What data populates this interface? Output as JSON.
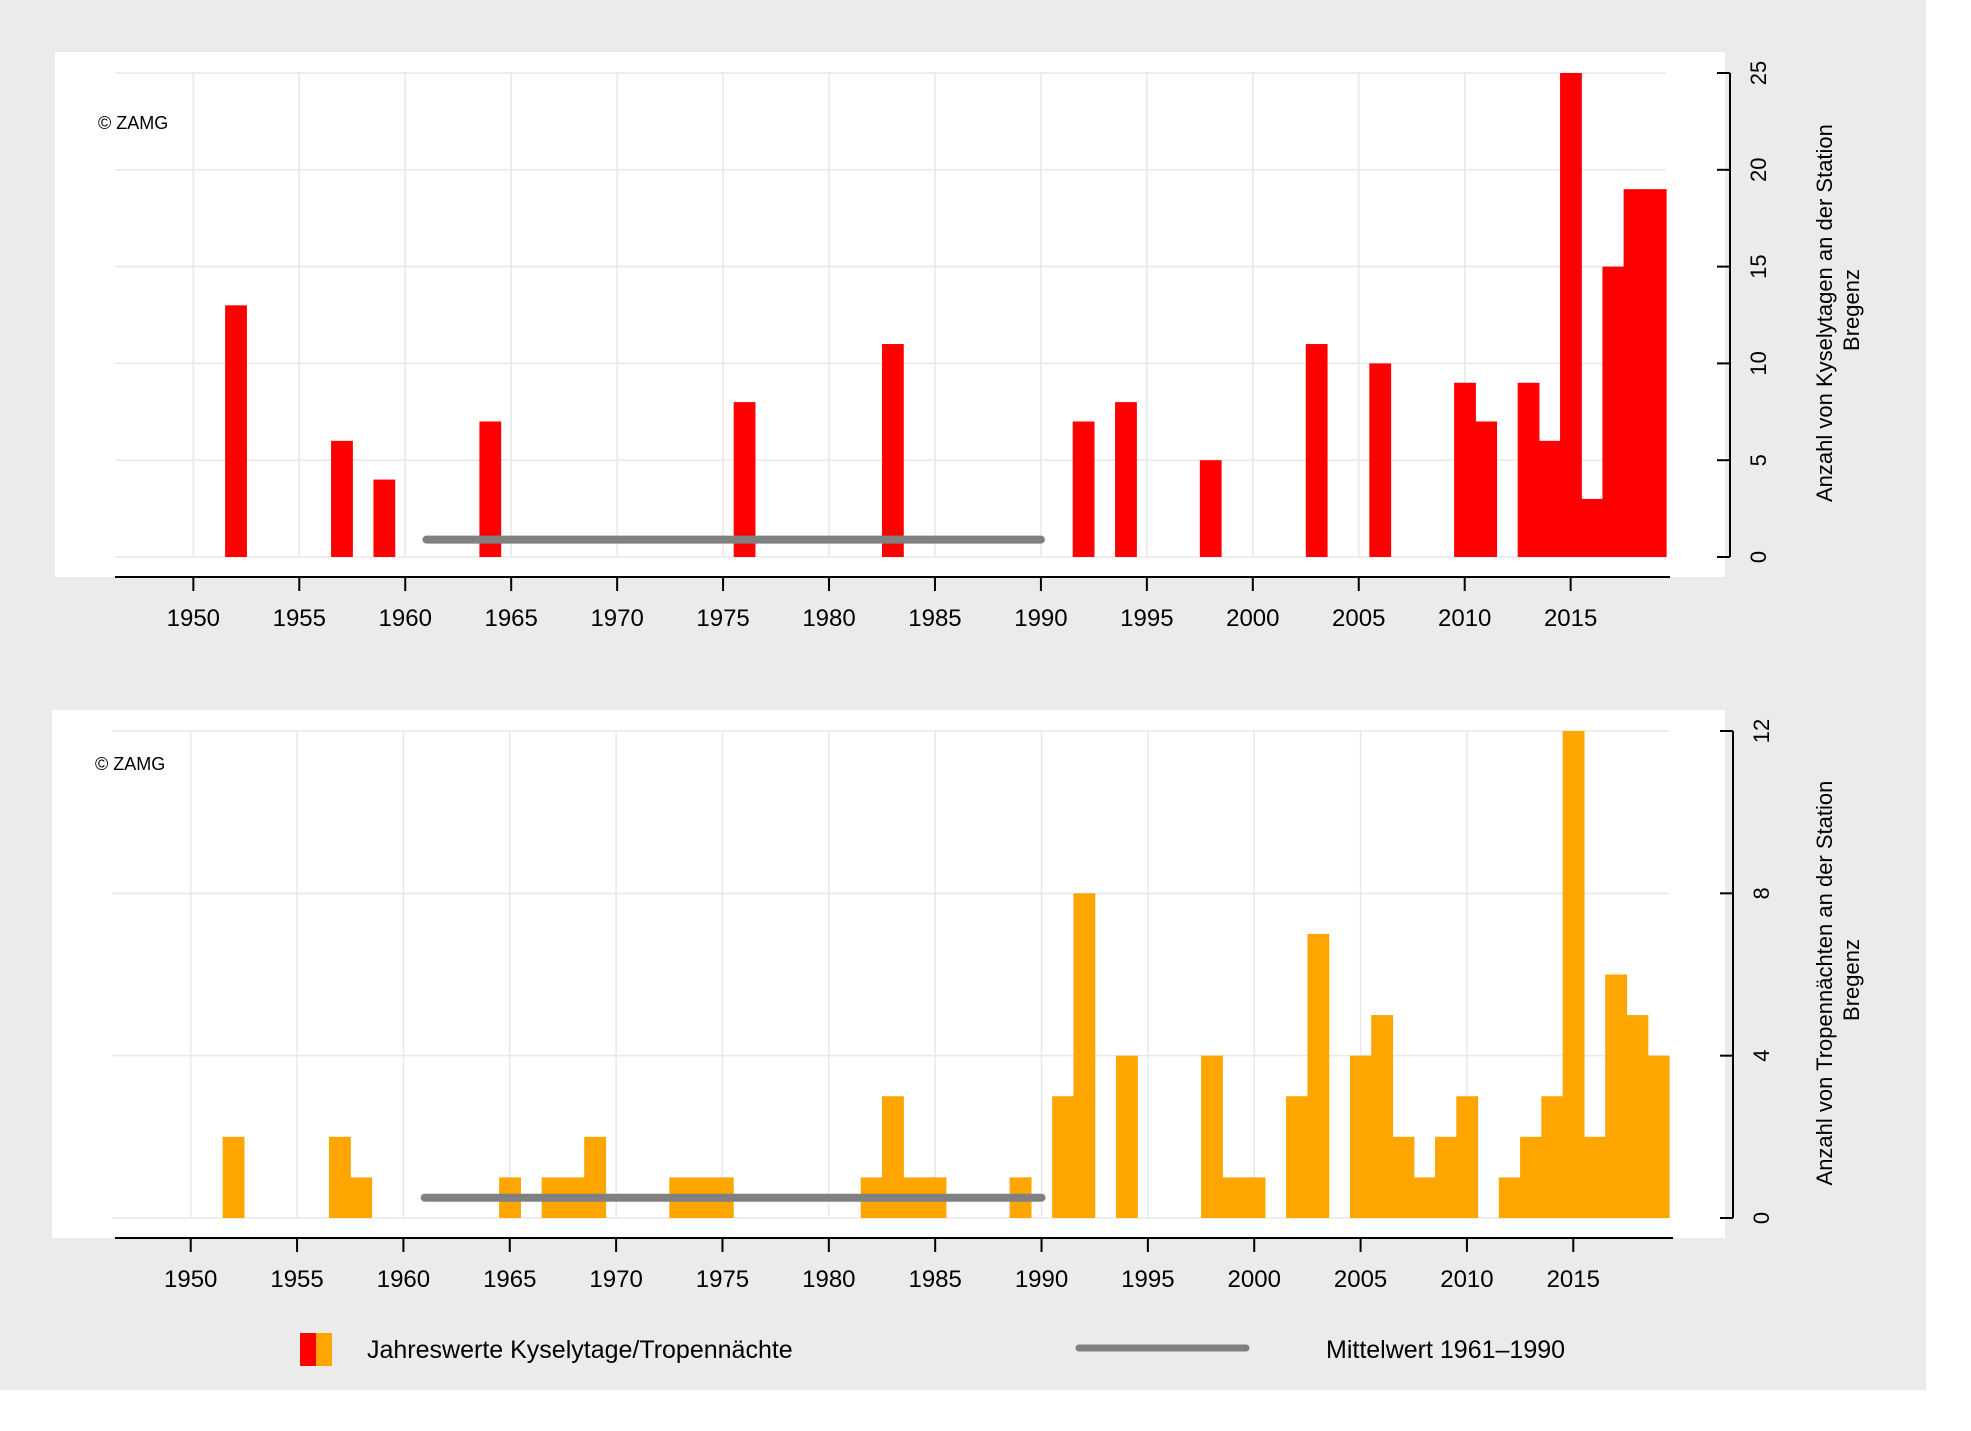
{
  "copyright": "© ZAMG",
  "legend": {
    "bars_label": "Jahreswerte Kyselytage/Tropennächte",
    "mean_label": "Mittelwert 1961–1990"
  },
  "colors": {
    "kyselytage": "#ff0000",
    "tropennaechte": "#ffa500",
    "mean": "#808080",
    "frame_bg": "#ebebeb",
    "grid": "#e8e8e8"
  },
  "chart_data": [
    {
      "type": "bar",
      "ylabel": "Anzahl von Kyselytagen an der Station Bregenz",
      "ylabel_lines": [
        "Anzahl von Kyselytagen an der Station",
        "Bregenz"
      ],
      "xlim": [
        1945.5,
        2019.5
      ],
      "ylim": [
        0,
        25
      ],
      "yticks": [
        0,
        5,
        10,
        15,
        20,
        25
      ],
      "xticks": [
        1950,
        1955,
        1960,
        1965,
        1970,
        1975,
        1980,
        1985,
        1990,
        1995,
        2000,
        2005,
        2010,
        2015
      ],
      "grid": true,
      "yaxis_position": "right",
      "color": "#ff0000",
      "x": [
        1952,
        1957,
        1959,
        1964,
        1976,
        1983,
        1992,
        1994,
        1998,
        2003,
        2006,
        2010,
        2011,
        2013,
        2014,
        2015,
        2016,
        2017,
        2018,
        2019
      ],
      "values": [
        13,
        6,
        4,
        7,
        8,
        11,
        7,
        8,
        5,
        11,
        10,
        9,
        7,
        9,
        6,
        25,
        3,
        15,
        19,
        19
      ],
      "mean": {
        "x_start": 1961,
        "x_end": 1990,
        "value": 0.9
      }
    },
    {
      "type": "bar",
      "ylabel": "Anzahl von Tropennächten an der Station Bregenz",
      "ylabel_lines": [
        "Anzahl von Tropennächten an der Station",
        "Bregenz"
      ],
      "xlim": [
        1945.5,
        2019.5
      ],
      "ylim": [
        0,
        12
      ],
      "yticks": [
        0,
        4,
        8,
        12
      ],
      "xticks": [
        1950,
        1955,
        1960,
        1965,
        1970,
        1975,
        1980,
        1985,
        1990,
        1995,
        2000,
        2005,
        2010,
        2015
      ],
      "grid": true,
      "yaxis_position": "right",
      "color": "#ffa500",
      "x": [
        1952,
        1957,
        1958,
        1965,
        1967,
        1968,
        1969,
        1973,
        1974,
        1975,
        1982,
        1983,
        1984,
        1985,
        1989,
        1991,
        1992,
        1994,
        1998,
        1999,
        2000,
        2002,
        2003,
        2005,
        2006,
        2007,
        2008,
        2009,
        2010,
        2012,
        2013,
        2014,
        2015,
        2016,
        2017,
        2018,
        2019
      ],
      "values": [
        2,
        2,
        1,
        1,
        1,
        1,
        2,
        1,
        1,
        1,
        1,
        3,
        1,
        1,
        1,
        3,
        8,
        4,
        4,
        1,
        1,
        3,
        7,
        4,
        5,
        2,
        1,
        2,
        3,
        1,
        2,
        3,
        12,
        2,
        6,
        5,
        4
      ],
      "mean": {
        "x_start": 1961,
        "x_end": 1990,
        "value": 0.5
      }
    }
  ]
}
